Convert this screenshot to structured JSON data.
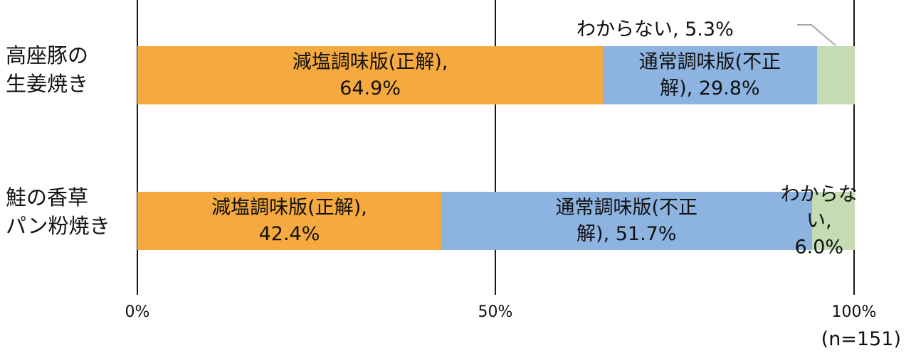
{
  "chart_data": {
    "type": "bar",
    "orientation": "horizontal",
    "stacked": true,
    "percent": true,
    "categories": [
      "高座豚の\n生姜焼き",
      "鮭の香草\nパン粉焼き"
    ],
    "series": [
      {
        "name": "減塩調味版（正解）",
        "values": [
          64.9,
          42.4
        ],
        "color": "#F5A93E"
      },
      {
        "name": "通常調味版（不正解）",
        "values": [
          29.8,
          51.7
        ],
        "color": "#8DB3E0"
      },
      {
        "name": "わからない",
        "values": [
          5.3,
          6.0
        ],
        "color": "#C4DBB3"
      }
    ],
    "data_labels": [
      [
        "減塩調味版(正解),\n64.9%",
        "通常調味版(不正\n解), 29.8%",
        "わからない, 5.3%"
      ],
      [
        "減塩調味版(正解),\n42.4%",
        "通常調味版(不正\n解), 51.7%",
        "わからない,\n6.0%"
      ]
    ],
    "x_ticks": [
      "0%",
      "50%",
      "100%"
    ],
    "xlim": [
      0,
      100
    ],
    "grid": true,
    "legend": "none",
    "title": "",
    "xlabel": "",
    "ylabel": "",
    "annotation": "(n=151)"
  }
}
